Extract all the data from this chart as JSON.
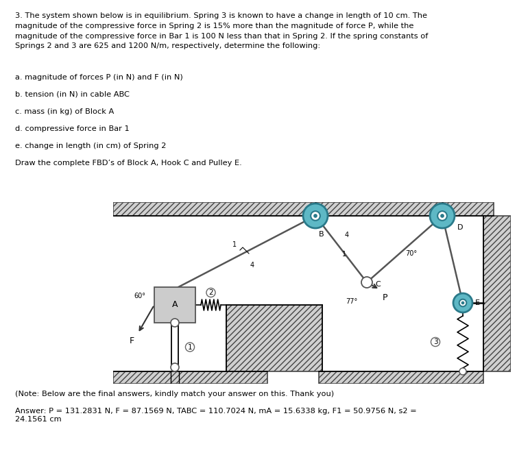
{
  "title_text": "3. The system shown below is in equilibrium. Spring 3 is known to have a change in length of 10 cm. The\nmagnitude of the compressive force in Spring 2 is 15% more than the magnitude of force P, while the\nmagnitude of the compressive force in Bar 1 is 100 N less than that in Spring 2. If the spring constants of\nSprings 2 and 3 are 625 and 1200 N/m, respectively, determine the following:",
  "q1": "a. magnitude of forces P (in N) and F (in N)",
  "q2": "b. tension (in N) in cable ABC",
  "q3": "c. mass (in kg) of Block A",
  "q4": "d. compressive force in Bar 1",
  "q5": "e. change in length (in cm) of Spring 2",
  "q6": "Draw the complete FBD’s of Block A, Hook C and Pulley E.",
  "note_text": "(Note: Below are the final answers, kindly match your answer on this. Thank you)",
  "answer_text": "Answer: P = 131.2831 N, F = 87.1569 N, TABC = 110.7024 N, mA = 15.6338 kg, F1 = 50.9756 N, s2 =\n24.1561 cm",
  "bg_color": "#ffffff",
  "text_color": "#000000"
}
